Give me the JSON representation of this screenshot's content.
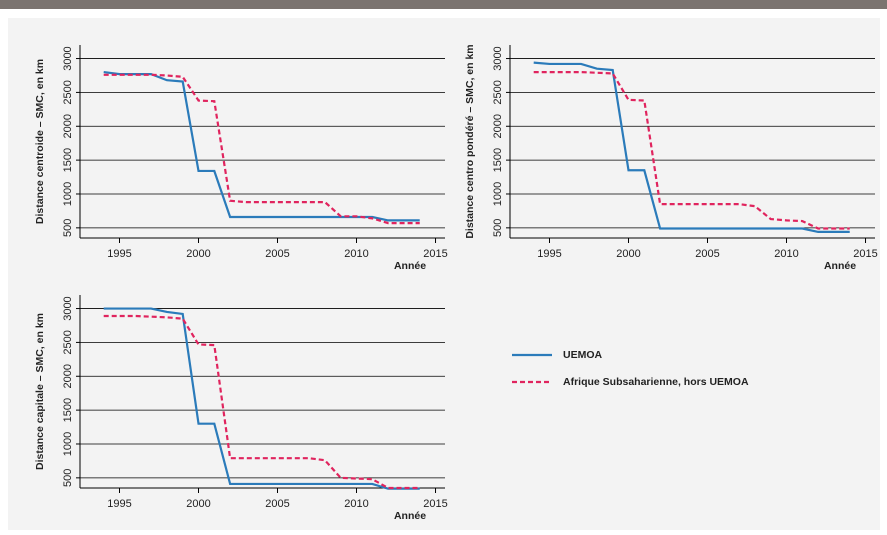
{
  "chart_data": [
    {
      "type": "line",
      "ylabel": "Distance centroide – SMC, en km",
      "xlabel": "Année",
      "x": [
        1994,
        1995,
        1996,
        1997,
        1998,
        1999,
        2000,
        2001,
        2002,
        2003,
        2004,
        2005,
        2006,
        2007,
        2008,
        2009,
        2010,
        2011,
        2012,
        2013,
        2014
      ],
      "series": [
        {
          "name": "UEMOA",
          "color": "#2b7bba",
          "style": "solid",
          "values": [
            2800,
            2770,
            2770,
            2770,
            2680,
            2660,
            1340,
            1340,
            660,
            660,
            660,
            660,
            660,
            660,
            660,
            660,
            660,
            660,
            610,
            610,
            610
          ]
        },
        {
          "name": "Afrique Subsaharienne, hors UEMOA",
          "color": "#e0245e",
          "style": "dashed",
          "values": [
            2760,
            2760,
            2760,
            2760,
            2750,
            2730,
            2380,
            2370,
            900,
            880,
            880,
            880,
            880,
            880,
            880,
            670,
            670,
            640,
            570,
            570,
            570
          ]
        }
      ],
      "xlim": [
        1992.5,
        2015.6
      ],
      "xticks": [
        1995,
        2000,
        2005,
        2010,
        2015
      ],
      "ylim": [
        350,
        3200
      ],
      "yticks": [
        500,
        1000,
        1500,
        2000,
        2500,
        3000
      ],
      "grid": true
    },
    {
      "type": "line",
      "ylabel": "Distance centro pondéré – SMC, en km",
      "xlabel": "Année",
      "x": [
        1994,
        1995,
        1996,
        1997,
        1998,
        1999,
        2000,
        2001,
        2002,
        2003,
        2004,
        2005,
        2006,
        2007,
        2008,
        2009,
        2010,
        2011,
        2012,
        2013,
        2014
      ],
      "series": [
        {
          "name": "UEMOA",
          "color": "#2b7bba",
          "style": "solid",
          "values": [
            2940,
            2920,
            2920,
            2920,
            2850,
            2830,
            1350,
            1350,
            490,
            490,
            490,
            490,
            490,
            490,
            490,
            490,
            490,
            490,
            440,
            440,
            440
          ]
        },
        {
          "name": "Afrique Subsaharienne, hors UEMOA",
          "color": "#e0245e",
          "style": "dashed",
          "values": [
            2800,
            2800,
            2800,
            2800,
            2790,
            2780,
            2390,
            2380,
            850,
            850,
            850,
            850,
            850,
            850,
            820,
            630,
            610,
            600,
            490,
            490,
            490
          ]
        }
      ],
      "xlim": [
        1992.5,
        2015.6
      ],
      "xticks": [
        1995,
        2000,
        2005,
        2010,
        2015
      ],
      "ylim": [
        350,
        3200
      ],
      "yticks": [
        500,
        1000,
        1500,
        2000,
        2500,
        3000
      ],
      "grid": true
    },
    {
      "type": "line",
      "ylabel": "Distance capitale – SMC, en km",
      "xlabel": "Année",
      "x": [
        1994,
        1995,
        1996,
        1997,
        1998,
        1999,
        2000,
        2001,
        2002,
        2003,
        2004,
        2005,
        2006,
        2007,
        2008,
        2009,
        2010,
        2011,
        2012,
        2013,
        2014
      ],
      "series": [
        {
          "name": "UEMOA",
          "color": "#2b7bba",
          "style": "solid",
          "values": [
            3000,
            3000,
            3000,
            3000,
            2950,
            2920,
            1300,
            1300,
            410,
            410,
            410,
            410,
            410,
            410,
            410,
            410,
            410,
            410,
            340,
            340,
            340
          ]
        },
        {
          "name": "Afrique Subsaharienne, hors UEMOA",
          "color": "#e0245e",
          "style": "dashed",
          "values": [
            2890,
            2890,
            2890,
            2880,
            2870,
            2850,
            2470,
            2460,
            790,
            790,
            790,
            790,
            790,
            790,
            760,
            500,
            490,
            480,
            350,
            350,
            350
          ]
        }
      ],
      "xlim": [
        1992.5,
        2015.6
      ],
      "xticks": [
        1995,
        2000,
        2005,
        2010,
        2015
      ],
      "ylim": [
        350,
        3200
      ],
      "yticks": [
        500,
        1000,
        1500,
        2000,
        2500,
        3000
      ],
      "grid": true
    }
  ]
}
